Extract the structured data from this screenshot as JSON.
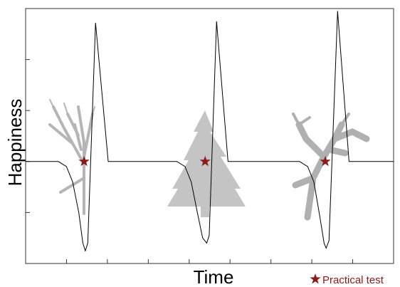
{
  "chart_data": {
    "type": "line",
    "y_label": "Happiness",
    "x_label": "Time",
    "x": [
      0,
      0.8,
      1.0,
      1.15,
      1.3,
      1.4,
      1.46,
      1.52,
      1.71,
      2.02,
      3.7,
      3.9,
      4.05,
      4.2,
      4.33,
      4.43,
      4.49,
      4.67,
      4.95,
      6.7,
      6.9,
      7.05,
      7.2,
      7.3,
      7.35,
      7.42,
      7.63,
      7.91,
      9
    ],
    "values": [
      0,
      0,
      -0.1,
      -0.4,
      -1.0,
      -1.6,
      -1.75,
      -1.6,
      2.72,
      0,
      0,
      -0.1,
      -0.4,
      -1.0,
      -1.5,
      -1.6,
      -1.45,
      2.75,
      0,
      0,
      -0.1,
      -0.4,
      -1.1,
      -1.6,
      -1.7,
      -1.55,
      2.95,
      0,
      0
    ],
    "color": "#000000",
    "markers": {
      "name": "Practical test",
      "color": "#8b1a1a",
      "x": [
        1.43,
        4.39,
        7.33
      ],
      "values": [
        0,
        0,
        0
      ]
    },
    "xlim": [
      0,
      9
    ],
    "xticks": [
      1,
      2,
      3,
      4,
      5,
      6,
      7,
      8
    ],
    "ylim": [
      -2,
      3
    ],
    "yticks": [
      -2,
      -1,
      0,
      1,
      2,
      3
    ],
    "legend": "bottom-right"
  }
}
